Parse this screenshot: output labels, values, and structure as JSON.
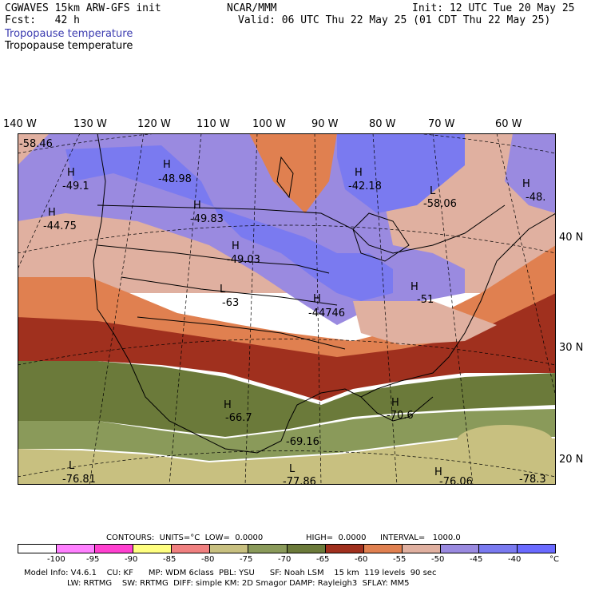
{
  "header": {
    "model_line": "CGWAVES 15km ARW-GFS init",
    "fcst_line": "Fcst:   42 h",
    "org": "NCAR/MMM",
    "init": "Init: 12 UTC Tue 20 May 25",
    "valid": "Valid: 06 UTC Thu 22 May 25 (01 CDT Thu 22 May 25)",
    "field_title_1": "Tropopause temperature",
    "field_title_2": "Tropopause temperature"
  },
  "axes": {
    "lon_labels": [
      "140 W",
      "130 W",
      "120 W",
      "110 W",
      "100 W",
      "90 W",
      "80 W",
      "70 W",
      "60 W"
    ],
    "lat_labels": [
      "40 N",
      "30 N",
      "20 N"
    ]
  },
  "map_labels": [
    {
      "text": "-58.46"
    },
    {
      "text": "H"
    },
    {
      "text": "-49.1"
    },
    {
      "text": "H"
    },
    {
      "text": "-44.75"
    },
    {
      "text": "H"
    },
    {
      "text": "-48.98"
    },
    {
      "text": "H"
    },
    {
      "text": "-49.83"
    },
    {
      "text": "H"
    },
    {
      "text": "-49.03"
    },
    {
      "text": "L"
    },
    {
      "text": "-63"
    },
    {
      "text": "H"
    },
    {
      "text": "-42.18"
    },
    {
      "text": "L"
    },
    {
      "text": "-58.06"
    },
    {
      "text": "H"
    },
    {
      "text": "-48."
    },
    {
      "text": "H"
    },
    {
      "text": "-44746"
    },
    {
      "text": "H"
    },
    {
      "text": "-51"
    },
    {
      "text": "H"
    },
    {
      "text": "-66.7"
    },
    {
      "text": "H"
    },
    {
      "text": "-70.6"
    },
    {
      "text": "-69.16"
    },
    {
      "text": "L"
    },
    {
      "text": "-76.81"
    },
    {
      "text": "L"
    },
    {
      "text": "-77.86"
    },
    {
      "text": "H"
    },
    {
      "text": "-76.06"
    },
    {
      "text": "-78.3"
    }
  ],
  "contours": {
    "units": "CONTOURS:  UNITS=°C  LOW=  0.0000",
    "high": "HIGH=  0.0000",
    "interval": "INTERVAL=   1000.0"
  },
  "colorbar": {
    "colors": [
      "#ffffff",
      "#ff80ff",
      "#ff40d0",
      "#ffff80",
      "#f08080",
      "#c8c080",
      "#8a9a5a",
      "#6b7a3a",
      "#a0301e",
      "#e08050",
      "#e0b0a0",
      "#9a8ae0",
      "#7a7af0",
      "#6a6aff"
    ],
    "ticks": [
      "-100",
      "-95",
      "-90",
      "-85",
      "-80",
      "-75",
      "-70",
      "-65",
      "-60",
      "-55",
      "-50",
      "-45",
      "-40",
      "°C"
    ]
  },
  "model_info": {
    "line1": "Model Info: V4.6.1    CU: KF      MP: WDM 6class  PBL: YSU      SF: Noah LSM    15 km  119 levels  90 sec",
    "line2": "LW: RRTMG    SW: RRTMG  DIFF: simple KM: 2D Smagor DAMP: Rayleigh3  SFLAY: MM5"
  },
  "palette": {
    "blue_max": "#6a6aff",
    "blue_mid": "#7a7af0",
    "lavender": "#9a8ae0",
    "pink": "#e0b0a0",
    "orange": "#e08050",
    "red": "#a0301e",
    "olive_dark": "#6b7a3a",
    "olive": "#8a9a5a",
    "khaki": "#c8c080"
  }
}
